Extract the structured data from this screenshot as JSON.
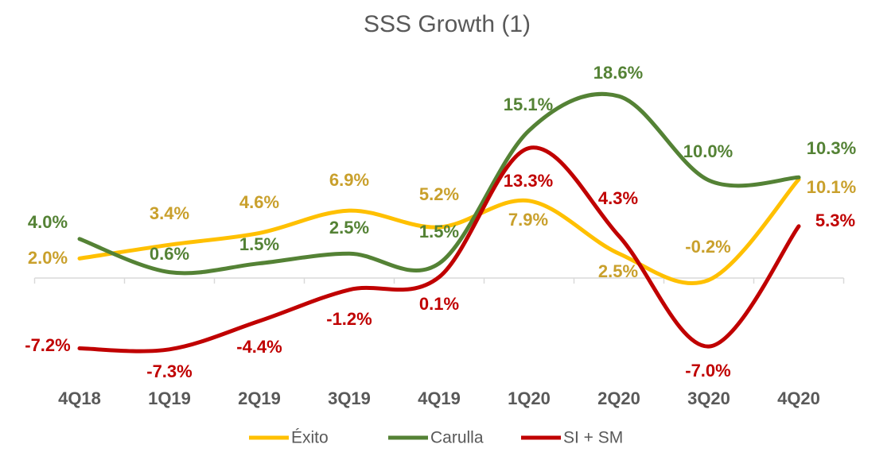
{
  "chart_data": {
    "type": "line",
    "title": "SSS Growth (1)",
    "categories": [
      "4Q18",
      "1Q19",
      "2Q19",
      "3Q19",
      "4Q19",
      "1Q20",
      "2Q20",
      "3Q20",
      "4Q20"
    ],
    "series": [
      {
        "name": "Éxito",
        "color": "#ffc000",
        "label_color": "#c9a02c",
        "values": [
          2.0,
          3.4,
          4.6,
          6.9,
          5.2,
          7.9,
          2.5,
          -0.2,
          10.1
        ],
        "value_labels": [
          "2.0%",
          "3.4%",
          "4.6%",
          "6.9%",
          "5.2%",
          "7.9%",
          "2.5%",
          "-0.2%",
          "10.1%"
        ]
      },
      {
        "name": "Carulla",
        "color": "#548235",
        "label_color": "#548235",
        "values": [
          4.0,
          0.6,
          1.5,
          2.5,
          1.5,
          15.1,
          18.6,
          10.0,
          10.3
        ],
        "value_labels": [
          "4.0%",
          "0.6%",
          "1.5%",
          "2.5%",
          "1.5%",
          "15.1%",
          "18.6%",
          "10.0%",
          "10.3%"
        ]
      },
      {
        "name": "SI + SM",
        "color": "#c00000",
        "label_color": "#c00000",
        "values": [
          -7.2,
          -7.3,
          -4.4,
          -1.2,
          0.1,
          13.3,
          4.3,
          -7.0,
          5.3
        ],
        "value_labels": [
          "-7.2%",
          "-7.3%",
          "-4.4%",
          "-1.2%",
          "0.1%",
          "13.3%",
          "4.3%",
          "-7.0%",
          "5.3%"
        ]
      }
    ],
    "legend": "bottom"
  }
}
